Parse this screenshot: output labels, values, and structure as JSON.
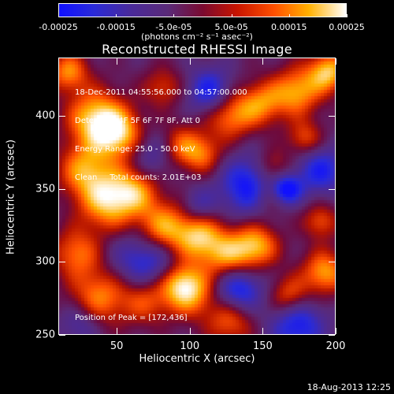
{
  "colorbar": {
    "ticks": [
      "-0.00025",
      "-0.00015",
      "-5.0e-05",
      "5.0e-05",
      "0.00015",
      "0.00025"
    ],
    "units": "(photons cm⁻² s⁻¹ asec⁻²)",
    "min": -0.00025,
    "max": 0.00025
  },
  "chart_data": {
    "type": "heatmap",
    "title": "Reconstructed RHESSI Image",
    "xlabel": "Heliocentric X (arcsec)",
    "ylabel": "Heliocentric Y (arcsec)",
    "xlim": [
      10,
      200
    ],
    "ylim": [
      250,
      440
    ],
    "xticks": [
      50,
      100,
      150,
      200
    ],
    "yticks": [
      250,
      300,
      350,
      400
    ],
    "peak": [
      172,
      436
    ],
    "annotations": [
      "18-Dec-2011 04:55:56.000 to 04:57:00.000",
      "Detectors: 4F 5F 6F 7F 8F, Att 0",
      "Energy Range: 25.0 - 50.0 keV",
      "Clean     Total counts: 2.01E+03"
    ],
    "peak_label": "Position of Peak = [172,436]"
  },
  "timestamp": "18-Aug-2013 12:25"
}
